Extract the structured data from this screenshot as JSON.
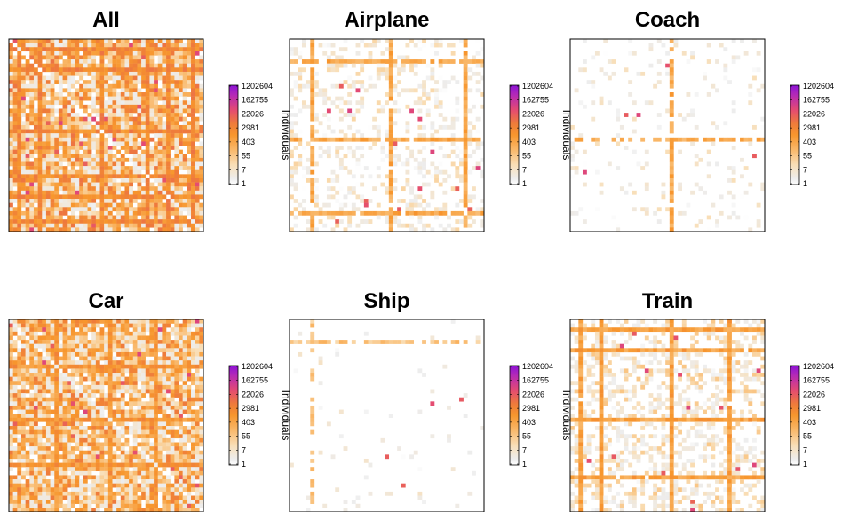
{
  "palette": {
    "colors": [
      "#FFFFFF",
      "#EDEDED",
      "#F9DEB6",
      "#F9B86A",
      "#F7962D",
      "#EE7A3C",
      "#E44B72",
      "#B52AB6",
      "#8C12D6"
    ],
    "stops": [
      0,
      0.06,
      0.2,
      0.35,
      0.5,
      0.62,
      0.75,
      0.9,
      1
    ]
  },
  "chart_data": [
    {
      "type": "heatmap",
      "title": "All",
      "matrix_size": 47,
      "legend": {
        "title": "Individuals",
        "scale": "log",
        "ticks": [
          "1202604",
          "162755",
          "22026",
          "2981",
          "403",
          "55",
          "7",
          "1"
        ],
        "min": 1,
        "max": 1202604
      },
      "density": 0.92,
      "base_level": 0.42,
      "spread": 0.22,
      "hub_rows": [
        2,
        7,
        22,
        33,
        38,
        44
      ],
      "hub_level": 0.55,
      "diagonal": true
    },
    {
      "type": "heatmap",
      "title": "Airplane",
      "matrix_size": 47,
      "legend": {
        "title": "Individuals",
        "scale": "log",
        "ticks": [
          "1202604",
          "162755",
          "22026",
          "2981",
          "403",
          "55",
          "7",
          "1"
        ],
        "min": 1,
        "max": 1202604
      },
      "density": 0.32,
      "base_level": 0.12,
      "spread": 0.12,
      "hub_rows": [
        5,
        24,
        42
      ],
      "hub_level": 0.42,
      "diagonal": false
    },
    {
      "type": "heatmap",
      "title": "Coach",
      "matrix_size": 47,
      "legend": {
        "title": "Individuals",
        "scale": "log",
        "ticks": [
          "1202604",
          "162755",
          "22026",
          "2981",
          "403",
          "55",
          "7",
          "1"
        ],
        "min": 1,
        "max": 1202604
      },
      "density": 0.12,
      "base_level": 0.08,
      "spread": 0.12,
      "hub_rows": [
        24
      ],
      "hub_level": 0.42,
      "diagonal": false
    },
    {
      "type": "heatmap",
      "title": "Car",
      "matrix_size": 47,
      "legend": {
        "title": "Individuals",
        "scale": "log",
        "ticks": [
          "1202604",
          "162755",
          "22026",
          "2981",
          "403",
          "55",
          "7",
          "1"
        ],
        "min": 1,
        "max": 1202604
      },
      "density": 0.9,
      "base_level": 0.4,
      "spread": 0.22,
      "hub_rows": [
        11,
        24,
        35
      ],
      "hub_level": 0.5,
      "diagonal": true
    },
    {
      "type": "heatmap",
      "title": "Ship",
      "matrix_size": 47,
      "legend": {
        "title": "Individuals",
        "scale": "log",
        "ticks": [
          "1202604",
          "162755",
          "22026",
          "2981",
          "403",
          "55",
          "7",
          "1"
        ],
        "min": 1,
        "max": 1202604
      },
      "density": 0.04,
      "base_level": 0.06,
      "spread": 0.1,
      "hub_rows": [
        5
      ],
      "hub_level": 0.3,
      "diagonal": false
    },
    {
      "type": "heatmap",
      "title": "Train",
      "matrix_size": 47,
      "legend": {
        "title": "Individuals",
        "scale": "log",
        "ticks": [
          "1202604",
          "162755",
          "22026",
          "2981",
          "403",
          "55",
          "7",
          "1"
        ],
        "min": 1,
        "max": 1202604
      },
      "density": 0.42,
      "base_level": 0.16,
      "spread": 0.14,
      "hub_rows": [
        2,
        7,
        24,
        38
      ],
      "hub_level": 0.45,
      "diagonal": false
    }
  ]
}
